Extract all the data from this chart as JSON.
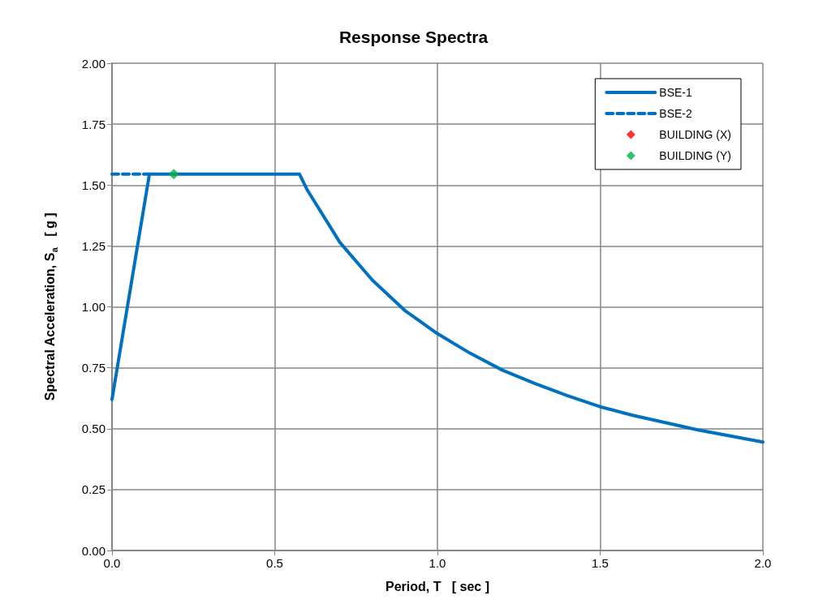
{
  "chart_data": {
    "type": "line",
    "title": "Response Spectra",
    "xlabel": "Period, T   [ sec ]",
    "ylabel": "Spectral Acceleration, S$_{a}$   [ g ]",
    "xlim": [
      0,
      2
    ],
    "xticks": [
      {
        "value": 0,
        "label": "0.0"
      },
      {
        "value": 0.5,
        "label": "0.5"
      },
      {
        "value": 1,
        "label": "1.0"
      },
      {
        "value": 1.5,
        "label": "1.5"
      },
      {
        "value": 2,
        "label": "2.0"
      }
    ],
    "ylim": [
      0,
      2
    ],
    "yticks": [
      {
        "value": 0,
        "label": "0.00"
      },
      {
        "value": 0.25,
        "label": "0.25"
      },
      {
        "value": 0.5,
        "label": "0.50"
      },
      {
        "value": 0.75,
        "label": "0.75"
      },
      {
        "value": 1,
        "label": "1.00"
      },
      {
        "value": 1.25,
        "label": "1.25"
      },
      {
        "value": 1.5,
        "label": "1.50"
      },
      {
        "value": 1.75,
        "label": "1.75"
      },
      {
        "value": 2,
        "label": "2.00"
      }
    ],
    "grid": true,
    "legend": "top right",
    "marker": "none",
    "series": [
      {
        "name": "BSE-1",
        "color": "#0070c0",
        "line_style": "solid",
        "x": [
          0,
          0.115,
          0.576,
          0.6,
          0.7,
          0.8,
          0.9,
          1.0,
          1.1,
          1.2,
          1.3,
          1.4,
          1.5,
          1.6,
          1.7,
          1.8,
          1.9,
          2.0
        ],
        "values": [
          0.62,
          1.545,
          1.545,
          1.48,
          1.265,
          1.11,
          0.985,
          0.89,
          0.81,
          0.74,
          0.685,
          0.635,
          0.59,
          0.555,
          0.525,
          0.495,
          0.47,
          0.445
        ]
      },
      {
        "name": "BSE-2",
        "color": "#0070c0",
        "line_style": "dashed",
        "x": [
          0,
          0.115
        ],
        "values": [
          1.545,
          1.545
        ]
      },
      {
        "name": "BUILDING (X)",
        "type": "scatter",
        "marker": "diamond",
        "color": "#ff0000"
      },
      {
        "name": "BUILDING (Y)",
        "type": "scatter",
        "marker": "diamond",
        "color": "#00b050",
        "x": [
          0.19
        ],
        "values": [
          1.545
        ]
      }
    ]
  }
}
